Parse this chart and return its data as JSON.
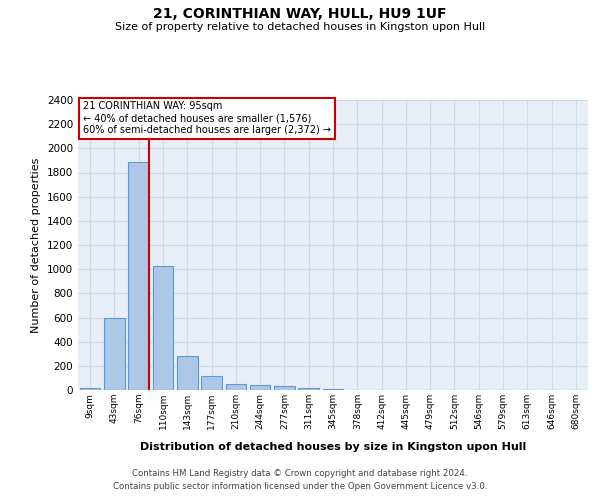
{
  "title": "21, CORINTHIAN WAY, HULL, HU9 1UF",
  "subtitle": "Size of property relative to detached houses in Kingston upon Hull",
  "xlabel": "Distribution of detached houses by size in Kingston upon Hull",
  "ylabel": "Number of detached properties",
  "footer_line1": "Contains HM Land Registry data © Crown copyright and database right 2024.",
  "footer_line2": "Contains public sector information licensed under the Open Government Licence v3.0.",
  "bin_labels": [
    "9sqm",
    "43sqm",
    "76sqm",
    "110sqm",
    "143sqm",
    "177sqm",
    "210sqm",
    "244sqm",
    "277sqm",
    "311sqm",
    "345sqm",
    "378sqm",
    "412sqm",
    "445sqm",
    "479sqm",
    "512sqm",
    "546sqm",
    "579sqm",
    "613sqm",
    "646sqm",
    "680sqm"
  ],
  "bar_values": [
    20,
    600,
    1890,
    1030,
    285,
    115,
    50,
    40,
    30,
    15,
    5,
    0,
    0,
    0,
    0,
    0,
    0,
    0,
    0,
    0,
    0
  ],
  "bar_color": "#aec6e8",
  "bar_edgecolor": "#5b9bd5",
  "red_line_color": "#cc0000",
  "annotation_title": "21 CORINTHIAN WAY: 95sqm",
  "annotation_line1": "← 40% of detached houses are smaller (1,576)",
  "annotation_line2": "60% of semi-detached houses are larger (2,372) →",
  "annotation_box_color": "#ffffff",
  "annotation_border_color": "#cc0000",
  "grid_color": "#d0d8e8",
  "background_color": "#e8eef8",
  "ylim": [
    0,
    2400
  ],
  "yticks": [
    0,
    200,
    400,
    600,
    800,
    1000,
    1200,
    1400,
    1600,
    1800,
    2000,
    2200,
    2400
  ]
}
